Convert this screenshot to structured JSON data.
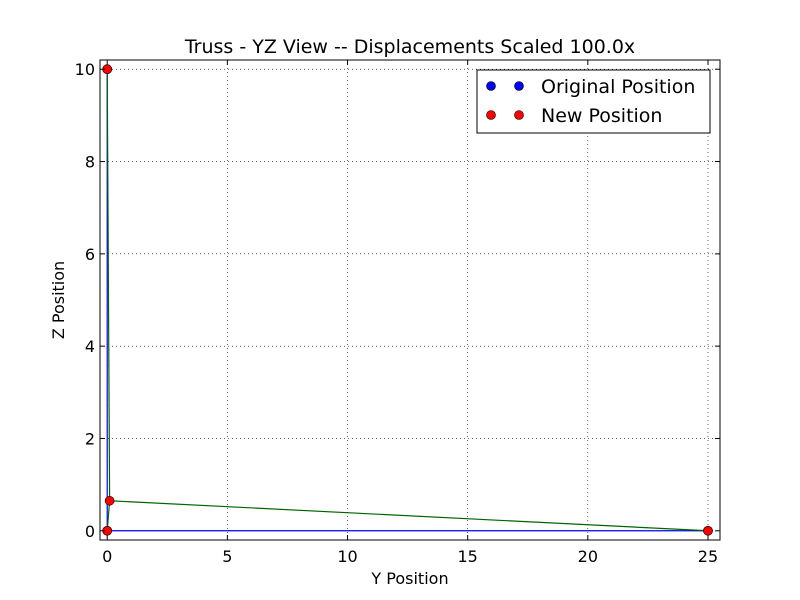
{
  "chart_data": {
    "type": "line",
    "title": "Truss - YZ View   --   Displacements Scaled 100.0x",
    "xlabel": "Y Position",
    "ylabel": "Z Position",
    "xlim": [
      -0.3,
      25.5
    ],
    "ylim": [
      -0.2,
      10.2
    ],
    "grid": true,
    "xticks": [
      0,
      5,
      10,
      15,
      20,
      25
    ],
    "xtick_labels": [
      "0",
      "5",
      "10",
      "15",
      "20",
      "25"
    ],
    "yticks": [
      0,
      2,
      4,
      6,
      8,
      10
    ],
    "ytick_labels": [
      "0",
      "2",
      "4",
      "6",
      "8",
      "10"
    ],
    "legend": {
      "placement": "top-right",
      "entries": [
        "Original Position",
        "New Position"
      ]
    },
    "series": [
      {
        "name": "Original Position",
        "color": "#0000ff",
        "points": [
          [
            0,
            0
          ],
          [
            25,
            0
          ],
          [
            0,
            10
          ]
        ],
        "members": [
          [
            0,
            1
          ],
          [
            0,
            2
          ]
        ]
      },
      {
        "name": "New Position",
        "color": "#ff0000",
        "line_color": "#006400",
        "points": [
          [
            0,
            0
          ],
          [
            0.1,
            0.65
          ],
          [
            25,
            0
          ],
          [
            0,
            10
          ]
        ],
        "members": [
          [
            0,
            1
          ],
          [
            1,
            2
          ],
          [
            1,
            3
          ]
        ]
      }
    ]
  }
}
